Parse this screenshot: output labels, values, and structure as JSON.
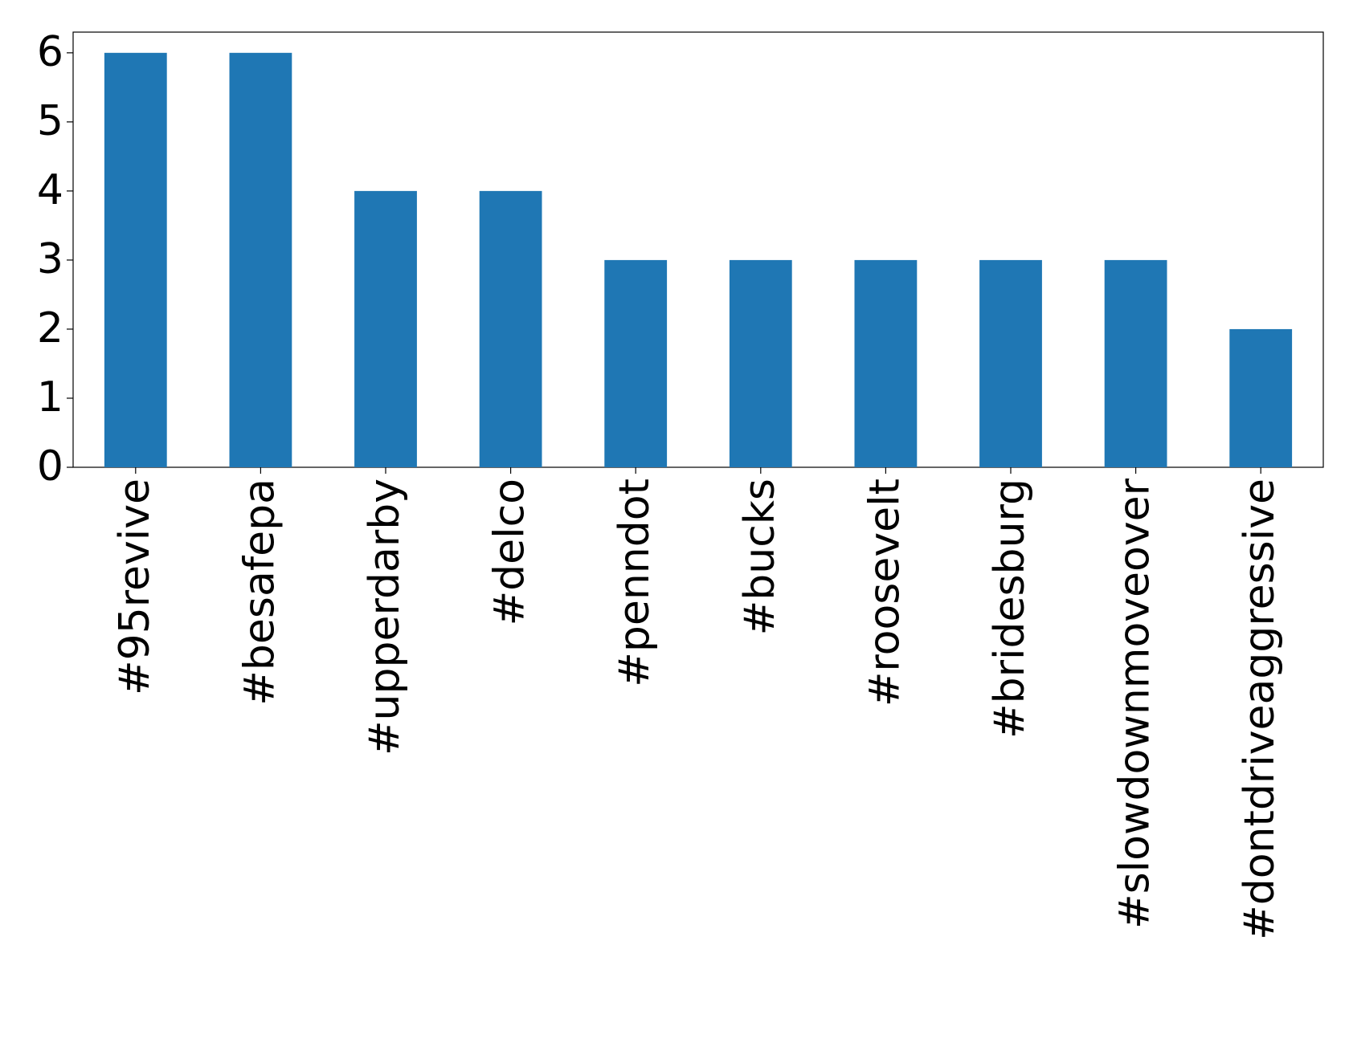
{
  "chart_data": {
    "type": "bar",
    "categories": [
      "#95revive",
      "#besafepa",
      "#upperdarby",
      "#delco",
      "#penndot",
      "#bucks",
      "#roosevelt",
      "#bridesburg",
      "#slowdownmoveover",
      "#dontdriveaggressive"
    ],
    "values": [
      6,
      6,
      4,
      4,
      3,
      3,
      3,
      3,
      3,
      2
    ],
    "color": "#1f77b4",
    "ylim": [
      0,
      6.3
    ],
    "yticks": [
      0,
      1,
      2,
      3,
      4,
      5,
      6
    ],
    "grid": false
  }
}
